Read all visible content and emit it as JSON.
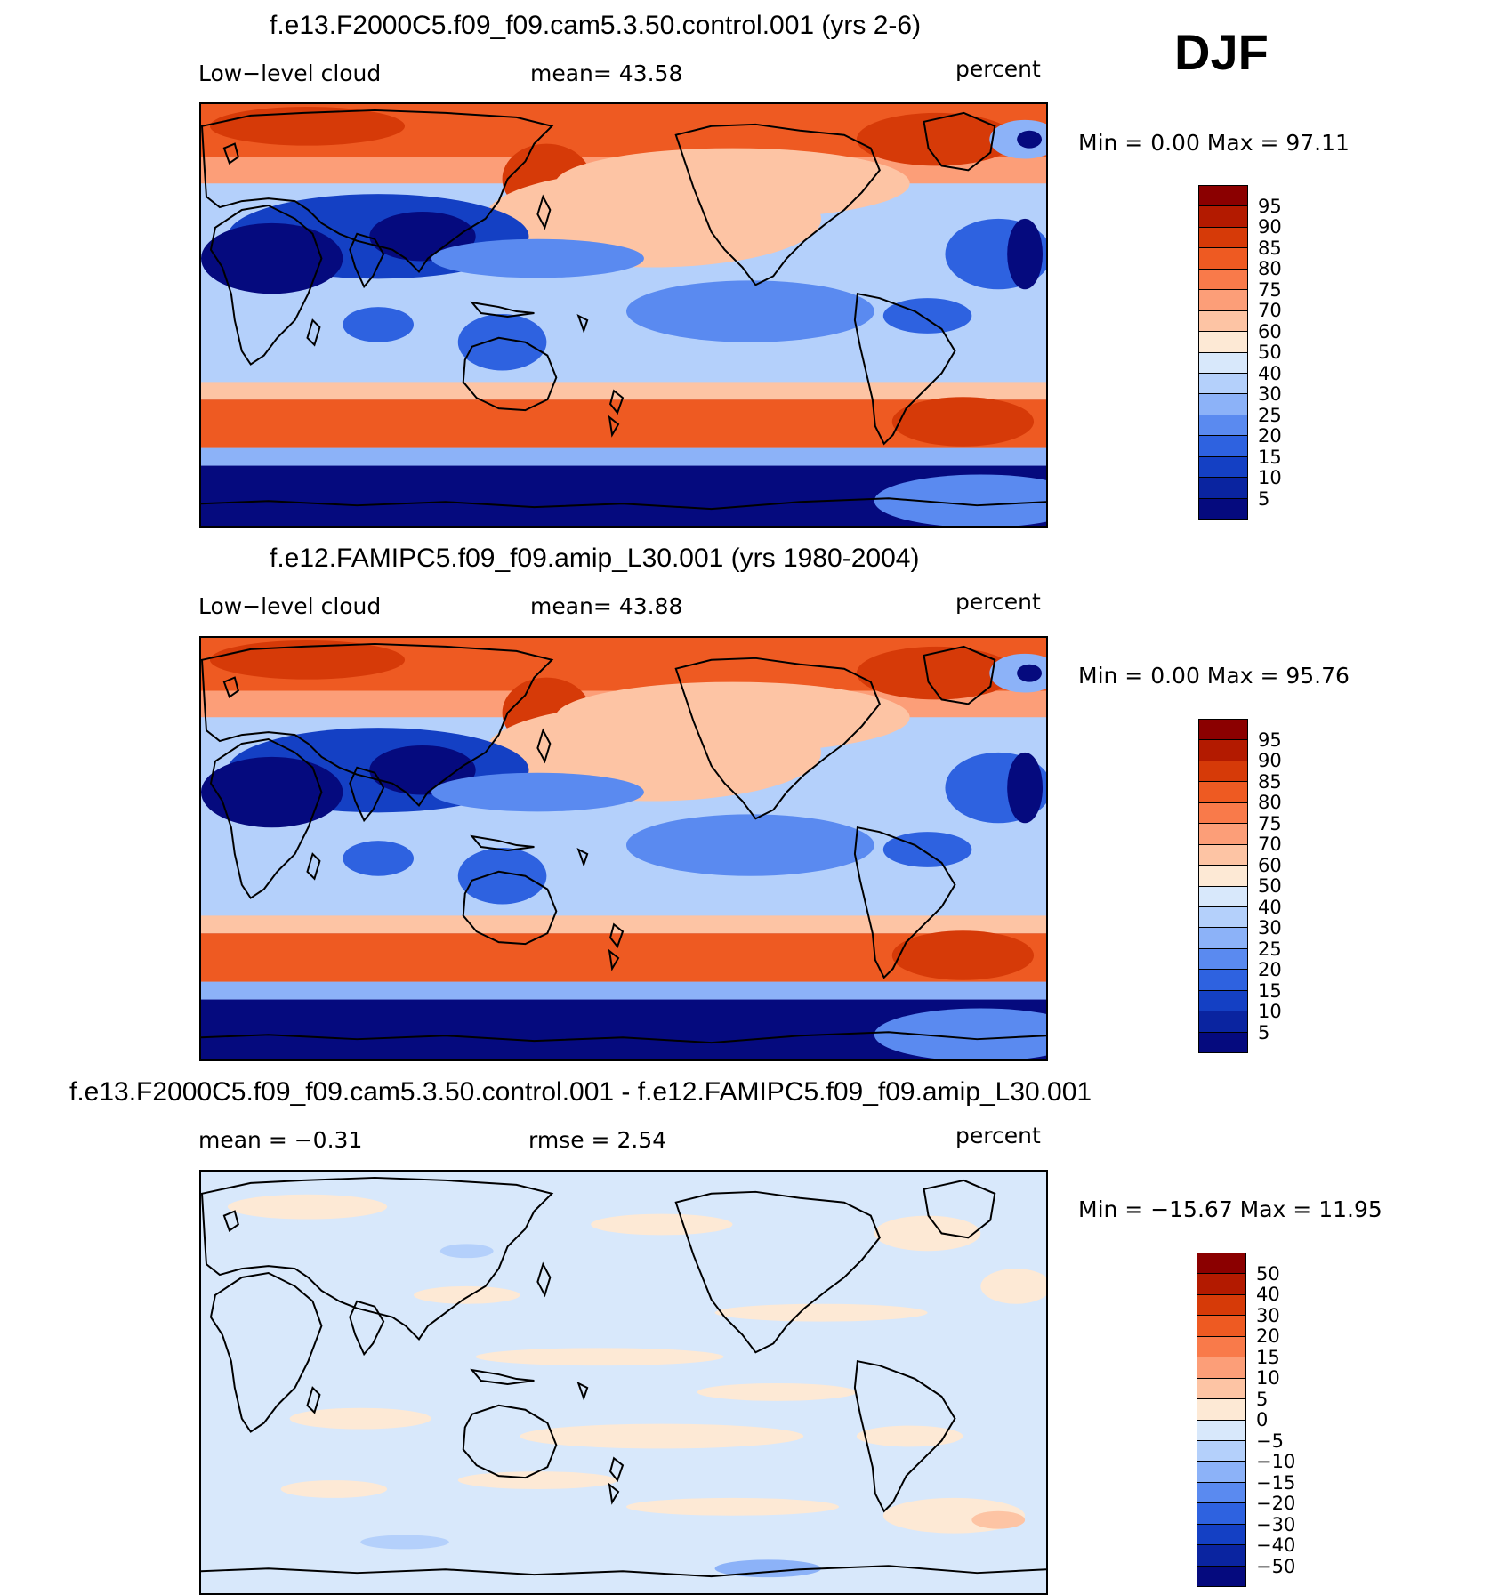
{
  "season": "DJF",
  "panels": [
    {
      "title": "f.e13.F2000C5.f09_f09.cam5.3.50.control.001 (yrs 2-6)",
      "left_label": "Low−level cloud",
      "mid_label": "mean=   43.58",
      "units": "percent",
      "minmax": "Min =     0.00  Max =    97.11",
      "colorbar_labels": [
        "95",
        "90",
        "85",
        "80",
        "75",
        "70",
        "60",
        "50",
        "40",
        "30",
        "25",
        "20",
        "15",
        "10",
        "5"
      ],
      "colorbar_colors": [
        "#8b0000",
        "#b31a00",
        "#d63a08",
        "#ee5a22",
        "#f97a4a",
        "#fc9e78",
        "#fdc4a4",
        "#fde9d5",
        "#d8e8fb",
        "#b4d0fb",
        "#8cb2f8",
        "#5a8af0",
        "#2e62e0",
        "#1440c4",
        "#0a24a0",
        "#050a7e"
      ],
      "map_style": "model"
    },
    {
      "title": "f.e12.FAMIPC5.f09_f09.amip_L30.001 (yrs 1980-2004)",
      "left_label": "Low−level cloud",
      "mid_label": "mean=   43.88",
      "units": "percent",
      "minmax": "Min =     0.00  Max =    95.76",
      "colorbar_labels": [
        "95",
        "90",
        "85",
        "80",
        "75",
        "70",
        "60",
        "50",
        "40",
        "30",
        "25",
        "20",
        "15",
        "10",
        "5"
      ],
      "colorbar_colors": [
        "#8b0000",
        "#b31a00",
        "#d63a08",
        "#ee5a22",
        "#f97a4a",
        "#fc9e78",
        "#fdc4a4",
        "#fde9d5",
        "#d8e8fb",
        "#b4d0fb",
        "#8cb2f8",
        "#5a8af0",
        "#2e62e0",
        "#1440c4",
        "#0a24a0",
        "#050a7e"
      ],
      "map_style": "model"
    },
    {
      "title": "f.e13.F2000C5.f09_f09.cam5.3.50.control.001 - f.e12.FAMIPC5.f09_f09.amip_L30.001",
      "left_label": "mean =   −0.31",
      "mid_label": "rmse =     2.54",
      "units": "percent",
      "minmax": "Min =  −15.67  Max =    11.95",
      "colorbar_labels": [
        "50",
        "40",
        "30",
        "20",
        "15",
        "10",
        "5",
        "0",
        "−5",
        "−10",
        "−15",
        "−20",
        "−30",
        "−40",
        "−50"
      ],
      "colorbar_colors": [
        "#8b0000",
        "#b31a00",
        "#d63a08",
        "#ee5a22",
        "#f97a4a",
        "#fc9e78",
        "#fdc4a4",
        "#fde9d5",
        "#d8e8fb",
        "#b4d0fb",
        "#8cb2f8",
        "#5a8af0",
        "#2e62e0",
        "#1440c4",
        "#0a24a0",
        "#050a7e"
      ],
      "map_style": "diff"
    }
  ]
}
